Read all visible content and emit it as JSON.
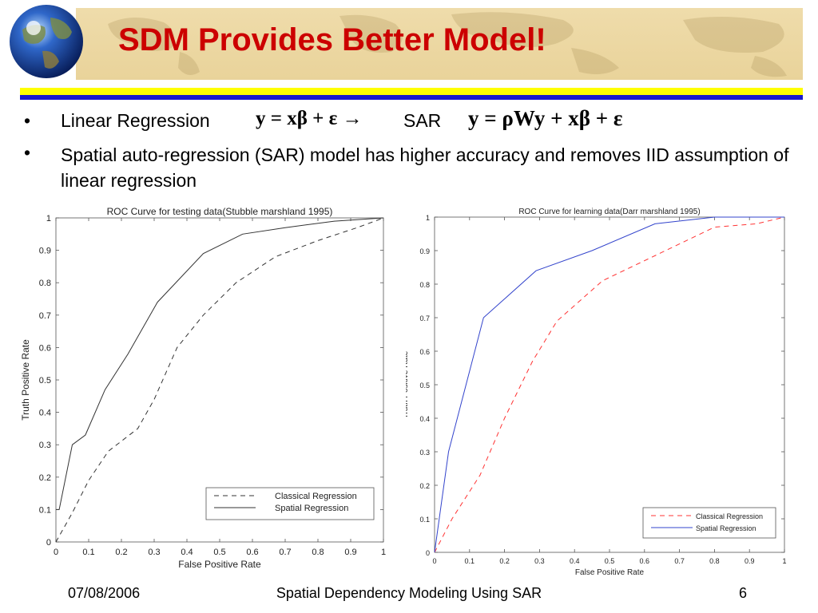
{
  "header": {
    "title": "SDM Provides Better Model!"
  },
  "bullets": [
    {
      "label": "Linear Regression",
      "equation_linear": "y = xβ + ε",
      "arrow": "→",
      "sar_label": "SAR",
      "equation_sar": "y = ρWy + xβ + ε"
    },
    {
      "text": "Spatial auto-regression (SAR) model has higher accuracy and removes IID assumption of linear regression"
    }
  ],
  "bullet_marker": "•",
  "chart_data": [
    {
      "type": "line",
      "title": "ROC Curve for testing data(Stubble marshland 1995)",
      "xlabel": "False Positive Rate",
      "ylabel": "Truth Positive Rate",
      "xlim": [
        0,
        1
      ],
      "ylim": [
        0,
        1
      ],
      "xticks": [
        "0",
        "0.1",
        "0.2",
        "0.3",
        "0.4",
        "0.5",
        "0.6",
        "0.7",
        "0.8",
        "0.9",
        "1"
      ],
      "yticks": [
        "0",
        "0.1",
        "0.2",
        "0.3",
        "0.4",
        "0.5",
        "0.6",
        "0.7",
        "0.8",
        "0.9",
        "1"
      ],
      "grid": false,
      "legend_position": "bottom-right",
      "series": [
        {
          "name": "Classical Regression",
          "style": "dashed",
          "color": "#333333",
          "x": [
            0,
            0.05,
            0.1,
            0.16,
            0.25,
            0.3,
            0.37,
            0.45,
            0.55,
            0.67,
            0.8,
            0.92,
            1.0
          ],
          "y": [
            0,
            0.09,
            0.19,
            0.28,
            0.35,
            0.44,
            0.6,
            0.7,
            0.8,
            0.88,
            0.93,
            0.97,
            1.0
          ]
        },
        {
          "name": "Spatial Regression",
          "style": "solid",
          "color": "#333333",
          "x": [
            0,
            0.01,
            0.05,
            0.09,
            0.15,
            0.22,
            0.31,
            0.45,
            0.57,
            0.7,
            0.85,
            1.0
          ],
          "y": [
            0.1,
            0.1,
            0.3,
            0.33,
            0.47,
            0.58,
            0.74,
            0.89,
            0.95,
            0.97,
            0.99,
            1.0
          ]
        }
      ]
    },
    {
      "type": "line",
      "title": "ROC Curve for learning data(Darr marshland 1995)",
      "xlabel": "False Positive Rate",
      "ylabel": "Truth Positive Rate",
      "xlim": [
        0,
        1
      ],
      "ylim": [
        0,
        1
      ],
      "xticks": [
        "0",
        "0.1",
        "0.2",
        "0.3",
        "0.4",
        "0.5",
        "0.6",
        "0.7",
        "0.8",
        "0.9",
        "1"
      ],
      "yticks": [
        "0",
        "0.1",
        "0.2",
        "0.3",
        "0.4",
        "0.5",
        "0.6",
        "0.7",
        "0.8",
        "0.9",
        "1"
      ],
      "grid": false,
      "legend_position": "bottom-right",
      "series": [
        {
          "name": "Classical Regression",
          "style": "dashed",
          "color": "#ff3333",
          "x": [
            0,
            0.05,
            0.13,
            0.2,
            0.28,
            0.35,
            0.48,
            0.62,
            0.8,
            0.92,
            1.0
          ],
          "y": [
            0,
            0.1,
            0.23,
            0.4,
            0.57,
            0.69,
            0.81,
            0.88,
            0.97,
            0.98,
            1.0
          ]
        },
        {
          "name": "Spatial Regression",
          "style": "solid",
          "color": "#3344cc",
          "x": [
            0,
            0.04,
            0.14,
            0.29,
            0.45,
            0.63,
            0.8,
            1.0
          ],
          "y": [
            0,
            0.3,
            0.7,
            0.84,
            0.9,
            0.98,
            1.0,
            1.0
          ]
        }
      ]
    }
  ],
  "footer": {
    "date": "07/08/2006",
    "center": "Spatial Dependency Modeling Using SAR",
    "page": "6"
  },
  "colors": {
    "title": "#cc0000",
    "banner": "#ecd8a2",
    "rule_yellow": "#ffff00",
    "rule_blue": "#1a1acc"
  }
}
